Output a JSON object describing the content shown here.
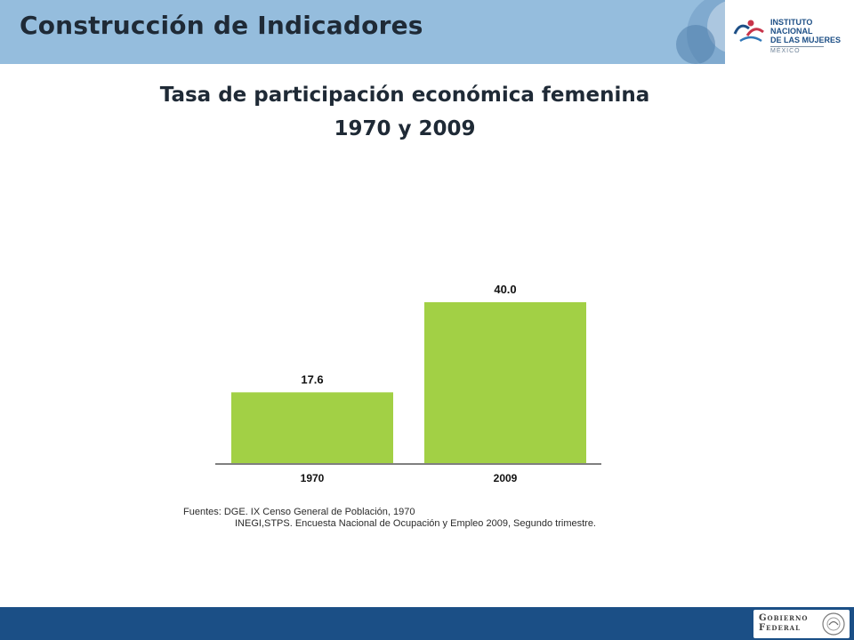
{
  "header": {
    "title": "Construcción de Indicadores",
    "band_color": "#95bddd"
  },
  "logo": {
    "line1": "INSTITUTO NACIONAL",
    "line2": "DE LAS MUJERES",
    "line3": "MÉXICO"
  },
  "chart_data": {
    "type": "bar",
    "title": "Tasa de participación económica femenina",
    "subtitle": "1970 y 2009",
    "categories": [
      "1970",
      "2009"
    ],
    "values": [
      17.6,
      40.0
    ],
    "value_labels": [
      "17.6",
      "40.0"
    ],
    "bar_color": "#a2d045",
    "ylim": [
      0,
      40
    ],
    "grid": false,
    "legend": "none",
    "xlabel": "",
    "ylabel": ""
  },
  "sources": {
    "line1": "Fuentes: DGE. IX Censo General  de Población, 1970",
    "line2": "INEGI,STPS. Encuesta Nacional de Ocupación y Empleo 2009, Segundo trimestre."
  },
  "footer": {
    "line1": "Gobierno",
    "line2": "Federal",
    "color": "#1b4f86"
  }
}
